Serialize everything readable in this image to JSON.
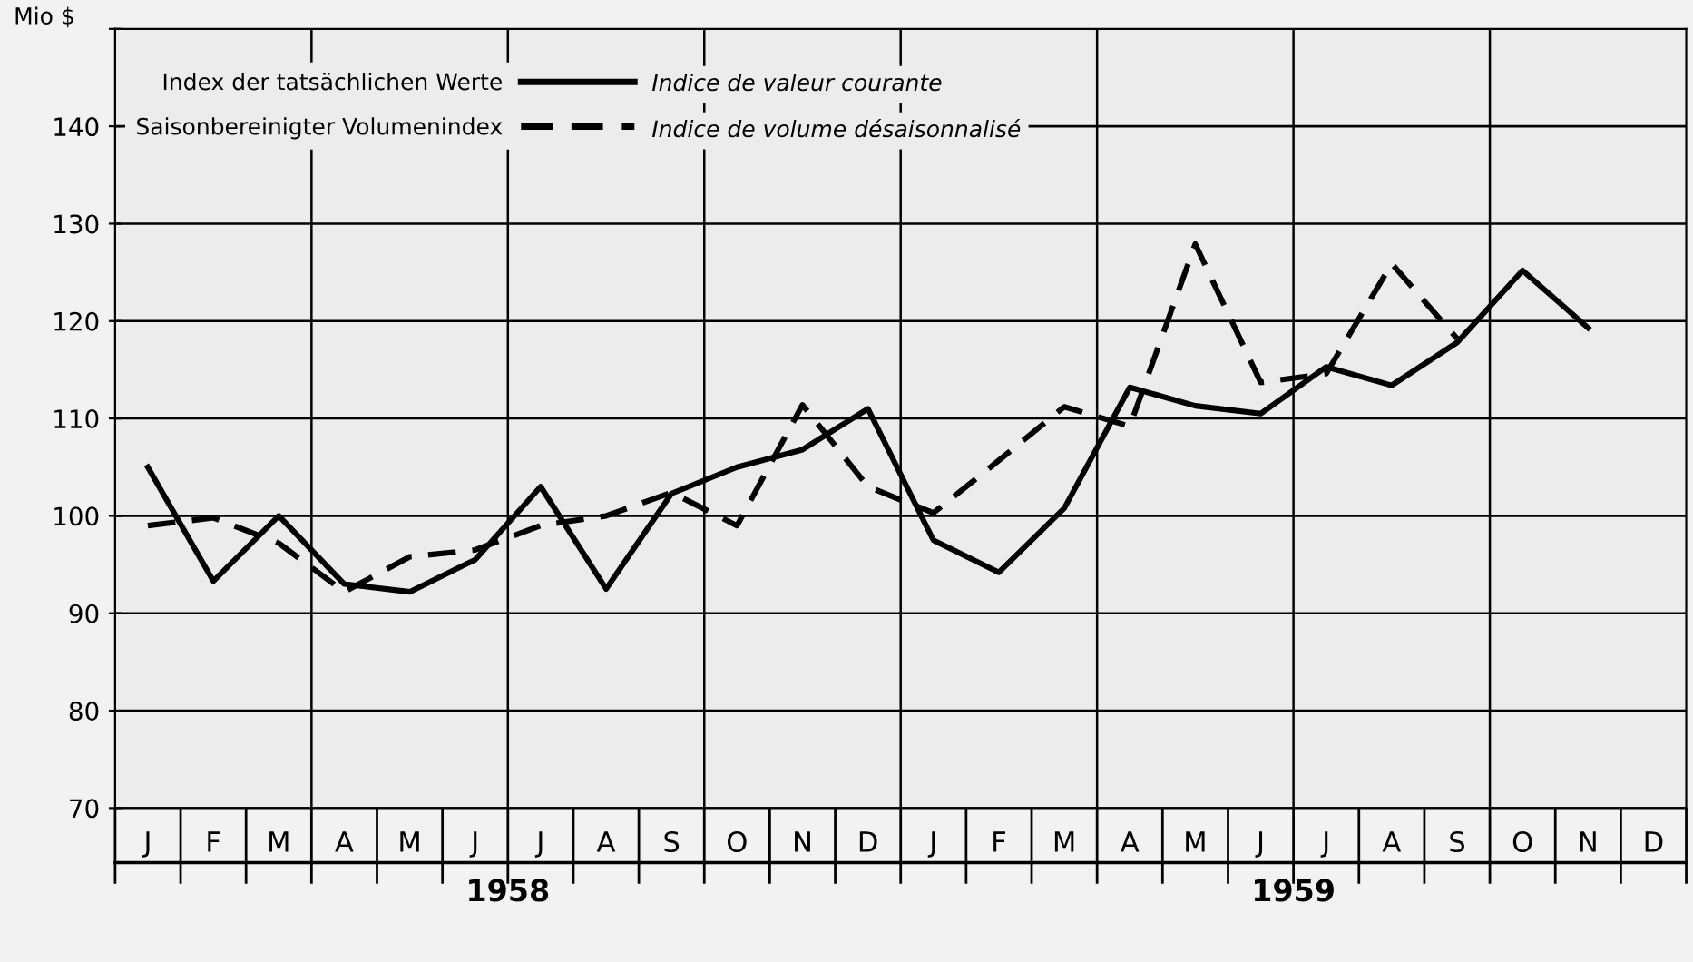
{
  "chart_data": {
    "type": "line",
    "ylabel": "Mio $",
    "categories": [
      "J",
      "F",
      "M",
      "A",
      "M",
      "J",
      "J",
      "A",
      "S",
      "O",
      "N",
      "D",
      "J",
      "F",
      "M",
      "A",
      "M",
      "J",
      "J",
      "A",
      "S",
      "O",
      "N",
      "D"
    ],
    "series": [
      {
        "name": "Index der tatsächlichen Werte",
        "color": "#000000",
        "line_style": "solid",
        "values": [
          105.0,
          93.3,
          100.0,
          93.0,
          92.2,
          95.5,
          103.0,
          92.5,
          102.3,
          105.0,
          106.8,
          111.0,
          97.5,
          94.2,
          100.8,
          113.2,
          111.3,
          110.5,
          115.3,
          113.4,
          117.8,
          125.2,
          119.3,
          null
        ]
      },
      {
        "name": "Saisonbereinigter Volumenindex",
        "color": "#000000",
        "line_style": "dashed",
        "values": [
          99.0,
          99.8,
          97.2,
          92.2,
          95.8,
          96.5,
          99.0,
          100.0,
          102.4,
          99.0,
          111.4,
          103.0,
          100.3,
          105.7,
          111.2,
          109.2,
          127.9,
          113.7,
          114.6,
          125.9,
          118.2,
          null,
          null,
          null
        ]
      }
    ],
    "ylim": [
      70,
      150
    ],
    "yticks": [
      70,
      80,
      90,
      100,
      110,
      120,
      130,
      140,
      {
        "value": 150,
        "label": null
      }
    ],
    "grid": true,
    "legend": "top left",
    "annotations": [
      "Indice de valeur courante",
      "Indice de volume désaisonnalisé",
      "1958",
      "1959"
    ]
  }
}
